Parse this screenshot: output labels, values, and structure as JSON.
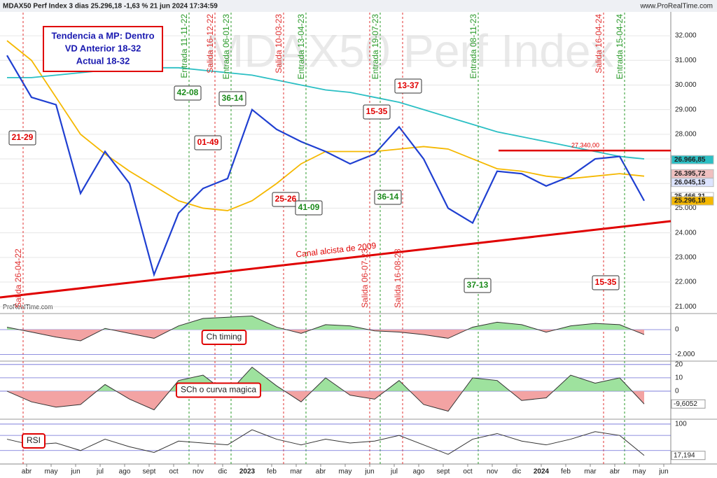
{
  "header": {
    "title": "MDAX50 Perf Index 3 dias 25.296,18 -1,63 % 21 jun 2024 17:34:59",
    "site": "www.ProRealTime.com",
    "footer": "ProRealTime.com"
  },
  "chart_data": [
    {
      "type": "line",
      "watermark": "MDAX50 Perf Index",
      "categories": [
        "abr",
        "may",
        "jun",
        "jul",
        "ago",
        "sept",
        "oct",
        "nov",
        "dic",
        "2023",
        "feb",
        "mar",
        "abr",
        "may",
        "jun",
        "jul",
        "ago",
        "sept",
        "oct",
        "nov",
        "dic",
        "2024",
        "feb",
        "mar",
        "abr",
        "may",
        "jun"
      ],
      "series": [
        {
          "name": "Precio",
          "color": "#1f3fd1",
          "values": [
            31200,
            29500,
            29200,
            25600,
            27300,
            26000,
            22300,
            24800,
            25800,
            26200,
            29000,
            28200,
            27700,
            27300,
            26800,
            27200,
            28300,
            27000,
            25000,
            24400,
            26500,
            26400,
            25900,
            26300,
            27000,
            27100,
            25300
          ]
        },
        {
          "name": "MA larga",
          "color": "#2bbfc4",
          "values": [
            30300,
            30300,
            30400,
            30500,
            30600,
            30700,
            30700,
            30700,
            30600,
            30500,
            30400,
            30200,
            30000,
            29800,
            29700,
            29500,
            29300,
            29000,
            28700,
            28400,
            28100,
            27900,
            27700,
            27500,
            27300,
            27100,
            27000
          ]
        },
        {
          "name": "MA media",
          "color": "#f5b800",
          "values": [
            31800,
            31000,
            29500,
            28000,
            27200,
            26500,
            25900,
            25300,
            25000,
            24900,
            25300,
            26000,
            26800,
            27300,
            27300,
            27300,
            27400,
            27500,
            27400,
            27000,
            26600,
            26500,
            26300,
            26200,
            26300,
            26400,
            26300
          ]
        }
      ],
      "ylim": [
        20750,
        32940
      ],
      "yticks": [
        {
          "value": 21000,
          "label": "21.000"
        },
        {
          "value": 22000,
          "label": "22.000"
        },
        {
          "value": 23000,
          "label": "23.000"
        },
        {
          "value": 24000,
          "label": "24.000"
        },
        {
          "value": 25000,
          "label": "25.000"
        },
        {
          "value": 26000,
          "label": "26.000"
        },
        {
          "value": 27000,
          "label": "27.000"
        },
        {
          "value": 28000,
          "label": "28.000"
        },
        {
          "value": 29000,
          "label": "29.000"
        },
        {
          "value": 30000,
          "label": "30.000"
        },
        {
          "value": 31000,
          "label": "31.000"
        },
        {
          "value": 32000,
          "label": "32.000"
        }
      ],
      "level": {
        "value": 27340,
        "label": "27.340,00",
        "color": "#e00000"
      },
      "price_labels": [
        {
          "value": 26966.85,
          "label": "26.966,85",
          "color": "#2bbfc4"
        },
        {
          "value": 26395.72,
          "label": "26.395,72",
          "color": "#f0c0c0"
        },
        {
          "value": 26045.15,
          "label": "26.045,15",
          "color": "#dde4ff"
        },
        {
          "value": 25466.31,
          "label": "25.466,31",
          "color": "#ffffff"
        },
        {
          "value": 25296.18,
          "label": "25.296,18",
          "color": "#f5b800"
        }
      ],
      "info": [
        "Tendencia a MP: Dentro",
        "VD Anterior 18-32",
        "Actual 18-32"
      ],
      "channel_label": "Canal alcista de 2009",
      "signals": [
        {
          "text": "Salida 26-04-22",
          "color": "#e03030"
        },
        {
          "text": "Entrada 11-11-22",
          "color": "#2a9a2a"
        },
        {
          "text": "Salida 16-12-22",
          "color": "#e03030"
        },
        {
          "text": "Entrada 06-01-23",
          "color": "#2a9a2a"
        },
        {
          "text": "Salida 10-03-23",
          "color": "#e03030"
        },
        {
          "text": "Entrada 13-04-23",
          "color": "#2a9a2a"
        },
        {
          "text": "Salida 06-07-23",
          "color": "#e03030"
        },
        {
          "text": "Entrada 19-07-23",
          "color": "#2a9a2a"
        },
        {
          "text": "Salida 16-08-23",
          "color": "#e03030"
        },
        {
          "text": "Entrada 08-11-23",
          "color": "#2a9a2a"
        },
        {
          "text": "Salida 16-04-24",
          "color": "#e03030"
        },
        {
          "text": "Entrada 15-04-24",
          "color": "#2a9a2a"
        }
      ],
      "boxes": [
        {
          "text": "21-29",
          "color": "#e00000"
        },
        {
          "text": "42-08",
          "color": "#1a8a1a"
        },
        {
          "text": "36-14",
          "color": "#1a8a1a"
        },
        {
          "text": "01-49",
          "color": "#e00000"
        },
        {
          "text": "25-26",
          "color": "#e00000"
        },
        {
          "text": "41-09",
          "color": "#1a8a1a"
        },
        {
          "text": "15-35",
          "color": "#e00000"
        },
        {
          "text": "13-37",
          "color": "#e00000"
        },
        {
          "text": "36-14",
          "color": "#1a8a1a"
        },
        {
          "text": "37-13",
          "color": "#1a8a1a"
        },
        {
          "text": "15-35",
          "color": "#e00000"
        }
      ]
    },
    {
      "type": "area",
      "label": "Ch timing",
      "label_color": "#e00000",
      "values": [
        200,
        -200,
        -600,
        -900,
        100,
        -300,
        -700,
        300,
        900,
        1000,
        1100,
        200,
        -300,
        400,
        300,
        -100,
        -200,
        -400,
        -700,
        200,
        600,
        400,
        -200,
        300,
        500,
        400,
        -400
      ],
      "ylim": [
        -2480,
        1240
      ],
      "yticks": [
        0,
        {
          "value": -2000,
          "label": "-2.000"
        }
      ]
    },
    {
      "type": "area",
      "label": "SCh o curva magica",
      "label_color": "#e00000",
      "values": [
        0,
        -8,
        -12,
        -10,
        5,
        -6,
        -14,
        8,
        12,
        -2,
        18,
        4,
        -8,
        10,
        -3,
        -6,
        8,
        -10,
        -15,
        10,
        8,
        -7,
        -5,
        12,
        6,
        10,
        -9.6052
      ],
      "ylim": [
        -20.5,
        22
      ],
      "yticks": [
        20,
        10,
        0
      ],
      "last_label": {
        "value": -9.6052,
        "label": "-9,6052"
      }
    },
    {
      "type": "line",
      "label": "RSI",
      "label_color": "#e00000",
      "values": [
        60,
        45,
        50,
        30,
        60,
        40,
        25,
        55,
        50,
        45,
        85,
        60,
        45,
        60,
        50,
        55,
        70,
        45,
        20,
        60,
        75,
        55,
        45,
        60,
        80,
        70,
        17.194
      ],
      "ylim": [
        0,
        111
      ],
      "yticks": [
        100
      ],
      "levels": [
        70,
        30
      ],
      "last_label": {
        "value": 17.194,
        "label": "17,194"
      }
    }
  ]
}
